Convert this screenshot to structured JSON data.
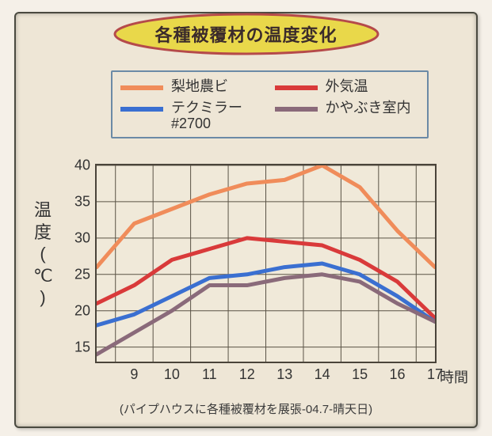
{
  "title": "各種被覆材の温度変化",
  "title_style": {
    "fill": "#e9d84a",
    "stroke": "#b54a4a",
    "stroke_width": 3
  },
  "panel": {
    "background": "#eee6d6",
    "border_color": "#4a4a40"
  },
  "legend": {
    "border_color": "#6b8aa6",
    "items": [
      {
        "key": "s1",
        "label": "梨地農ビ"
      },
      {
        "key": "s2",
        "label": "外気温"
      },
      {
        "key": "s3",
        "label": "テクミラー\n#2700"
      },
      {
        "key": "s4",
        "label": "かやぶき室内"
      }
    ]
  },
  "chart": {
    "type": "line",
    "x": [
      8,
      9,
      10,
      11,
      12,
      13,
      14,
      15,
      16,
      17
    ],
    "xlim": [
      8,
      17
    ],
    "ylim": [
      13,
      40
    ],
    "xticks": [
      9,
      10,
      11,
      12,
      13,
      14,
      15,
      16,
      17
    ],
    "yticks": [
      15,
      20,
      25,
      30,
      35,
      40
    ],
    "x_vgrid": [
      8.5,
      9.5,
      10.5,
      11.5,
      12.5,
      13.5,
      14.5,
      15.5,
      16.5
    ],
    "x_axis_label": "時間",
    "y_axis_label": "温度(℃)",
    "grid_color": "#5a5346",
    "grid_width": 1,
    "background": "#f0e9d9",
    "line_width": 5,
    "series": {
      "s1": {
        "color": "#f08c5a",
        "values": [
          26,
          32,
          34,
          36,
          37.5,
          38,
          40,
          37,
          31,
          26
        ]
      },
      "s2": {
        "color": "#d93a3a",
        "values": [
          21,
          23.5,
          27,
          28.5,
          30,
          29.5,
          29,
          27,
          24,
          19
        ]
      },
      "s3": {
        "color": "#3a6fd1",
        "values": [
          18,
          19.5,
          22,
          24.5,
          25,
          26,
          26.5,
          25,
          22,
          18.5
        ]
      },
      "s4": {
        "color": "#8a6a7a",
        "values": [
          14,
          17,
          20,
          23.5,
          23.5,
          24.5,
          25,
          24,
          21,
          18.5
        ]
      }
    }
  },
  "caption": "(パイプハウスに各種被覆材を展張-04.7-晴天日)",
  "fontsize": {
    "title": 22,
    "legend": 18,
    "tick": 18,
    "axis_label": 22,
    "caption": 15
  }
}
